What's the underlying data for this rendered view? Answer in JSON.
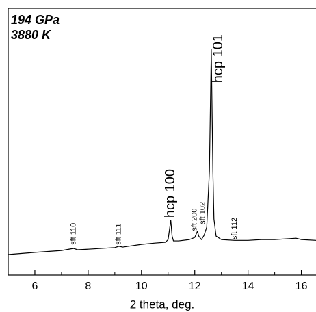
{
  "chart_data": {
    "type": "line",
    "title_lines": [
      "194 GPa",
      "3880 K"
    ],
    "xlabel": "2 theta, deg.",
    "xlim": [
      5,
      16.55
    ],
    "ylim": [
      0,
      100
    ],
    "xticks": [
      6,
      8,
      10,
      12,
      14,
      16
    ],
    "xminorticks": [
      5,
      7,
      9,
      11,
      13,
      15
    ],
    "series": [
      {
        "color": "#000000",
        "x": [
          5,
          6,
          7,
          7.45,
          7.6,
          8,
          9,
          9.15,
          9.3,
          10,
          10.5,
          10.9,
          11.0,
          11.1,
          11.15,
          11.2,
          11.4,
          11.8,
          12.0,
          12.1,
          12.15,
          12.25,
          12.35,
          12.45,
          12.55,
          12.62,
          12.68,
          12.72,
          12.8,
          13,
          13.5,
          14,
          14.5,
          15,
          15.5,
          15.8,
          16,
          16.55
        ],
        "values": [
          7.7,
          8.5,
          9.2,
          10,
          9.5,
          9.7,
          10.3,
          10.8,
          10.5,
          11.5,
          12,
          12.3,
          13.3,
          20.5,
          14.6,
          12.8,
          12.8,
          13.3,
          14.1,
          16.4,
          14.6,
          13.3,
          14.9,
          18,
          39,
          84.6,
          39,
          21,
          14.6,
          13.3,
          13,
          13,
          13.3,
          13.3,
          13.6,
          13.8,
          13.3,
          13
        ]
      }
    ],
    "peak_labels": [
      {
        "text": "hcp 100",
        "x": 11.1,
        "y": 21.5
      },
      {
        "text": "hcp 101",
        "x": 12.9,
        "y": 72
      }
    ],
    "minor_labels": [
      {
        "text": "sft 110",
        "x": 7.45,
        "y": 11.3
      },
      {
        "text": "sft 111",
        "x": 9.15,
        "y": 11.3
      },
      {
        "text": "sft 200",
        "x": 12.0,
        "y": 16.5
      },
      {
        "text": "sft 102",
        "x": 12.3,
        "y": 19
      },
      {
        "text": "sft 112",
        "x": 13.5,
        "y": 13.3
      }
    ]
  }
}
